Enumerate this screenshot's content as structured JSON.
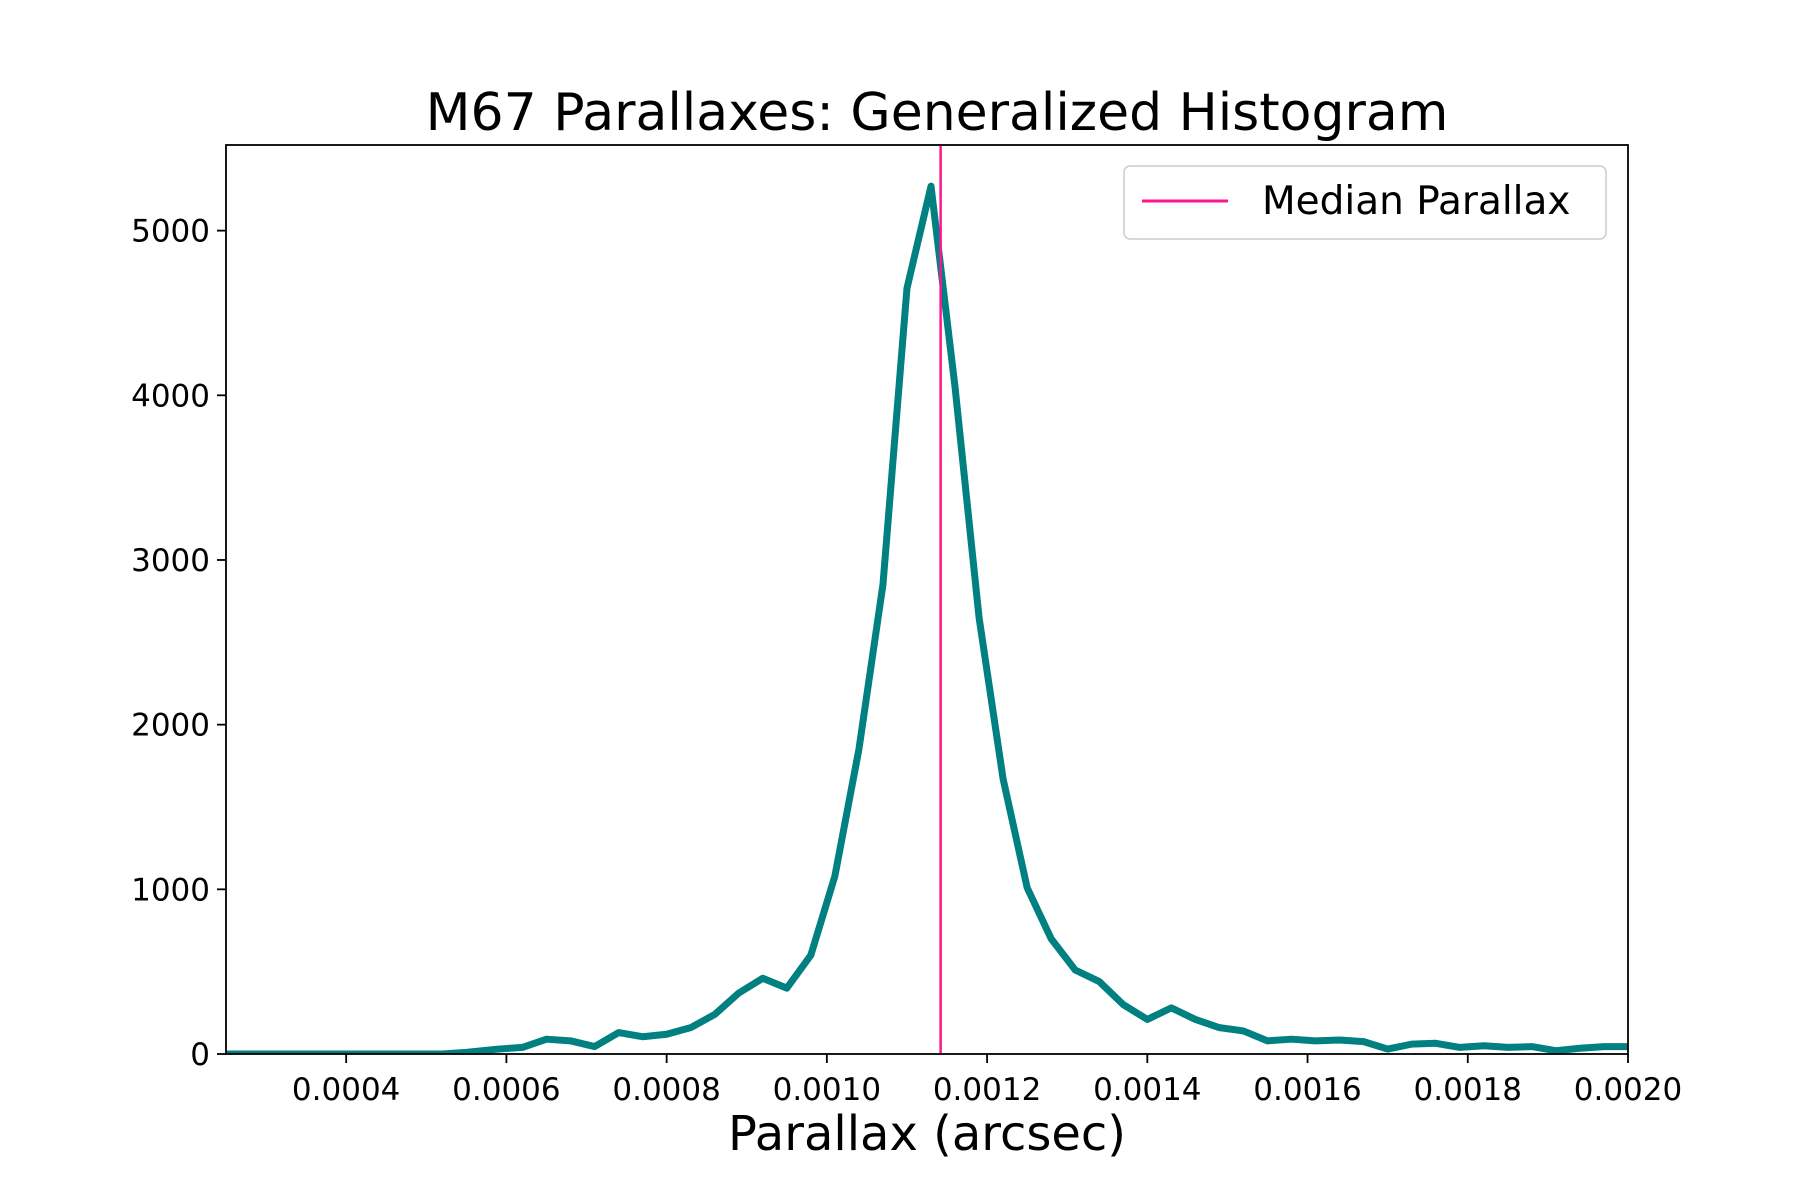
{
  "chart_data": {
    "type": "line",
    "title": "M67 Parallaxes: Generalized Histogram",
    "xlabel": "Parallax (arcsec)",
    "ylabel": "",
    "xlim": [
      0.00025,
      0.002
    ],
    "ylim": [
      0,
      5520
    ],
    "x_ticks": [
      "0.0004",
      "0.0006",
      "0.0008",
      "0.0010",
      "0.0012",
      "0.0014",
      "0.0016",
      "0.0018",
      "0.0020"
    ],
    "y_ticks": [
      "0",
      "1000",
      "2000",
      "3000",
      "4000",
      "5000"
    ],
    "grid": false,
    "legend_position": "top-right",
    "series": [
      {
        "color": "#008080",
        "x": [
          0.00025,
          0.00028,
          0.00031,
          0.00034,
          0.00037,
          0.0004,
          0.00043,
          0.00046,
          0.00049,
          0.00052,
          0.00055,
          0.00059,
          0.00062,
          0.00065,
          0.00068,
          0.00071,
          0.00074,
          0.00077,
          0.0008,
          0.00083,
          0.00086,
          0.00089,
          0.00092,
          0.00095,
          0.00098,
          0.00101,
          0.00104,
          0.00107,
          0.0011,
          0.00113,
          0.00116,
          0.00119,
          0.00122,
          0.00125,
          0.00128,
          0.00131,
          0.00134,
          0.00137,
          0.0014,
          0.00143,
          0.00146,
          0.00149,
          0.00152,
          0.00155,
          0.00158,
          0.00161,
          0.00164,
          0.00167,
          0.0017,
          0.00173,
          0.00176,
          0.00179,
          0.00182,
          0.00185,
          0.00188,
          0.00191,
          0.00194,
          0.00197,
          0.002
        ],
        "values": [
          0,
          0,
          0,
          0,
          0,
          0,
          0,
          0,
          0,
          0,
          10,
          30,
          40,
          90,
          80,
          45,
          130,
          105,
          120,
          160,
          240,
          370,
          460,
          400,
          600,
          1080,
          1850,
          2850,
          4650,
          5270,
          4050,
          2650,
          1670,
          1010,
          700,
          510,
          440,
          300,
          210,
          280,
          210,
          160,
          140,
          80,
          90,
          80,
          85,
          75,
          30,
          60,
          65,
          40,
          50,
          40,
          45,
          20,
          35,
          45,
          45
        ]
      }
    ],
    "median_parallax": 0.001142,
    "median_color": "#ff1493",
    "legend": [
      {
        "label": "Median Parallax",
        "color": "#ff1493"
      }
    ]
  }
}
